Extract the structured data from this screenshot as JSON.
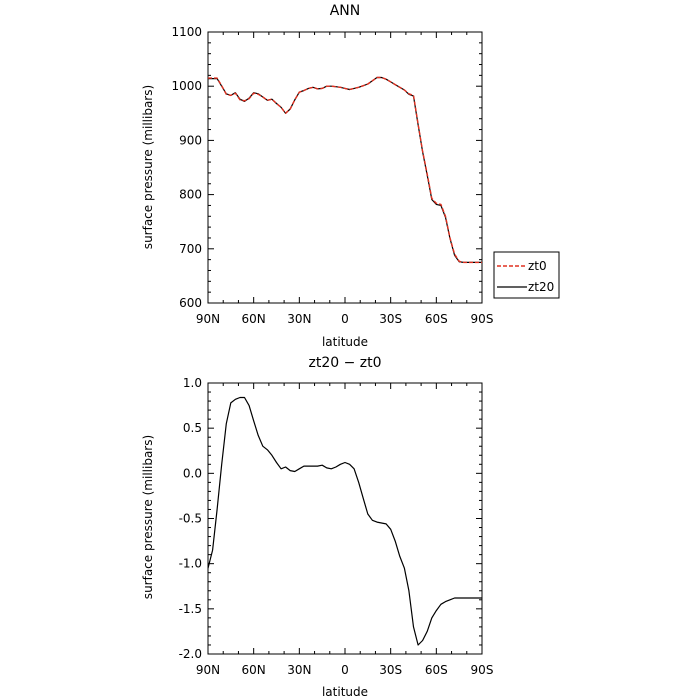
{
  "chart_data": [
    {
      "type": "line",
      "title": "ANN",
      "xlabel": "latitude",
      "ylabel": "surface pressure (millibars)",
      "xlim": [
        90,
        -90
      ],
      "ylim": [
        600,
        1100
      ],
      "xticks": [
        90,
        60,
        30,
        0,
        -30,
        -60,
        -90
      ],
      "xtick_labels": [
        "90N",
        "60N",
        "30N",
        "0",
        "30S",
        "60S",
        "90S"
      ],
      "yticks": [
        600,
        700,
        800,
        900,
        1000,
        1100
      ],
      "ytick_labels": [
        "600",
        "700",
        "800",
        "900",
        "1000",
        "1100"
      ],
      "grid": false,
      "legend_position": "right",
      "series": [
        {
          "name": "zt0",
          "color": "#e03020",
          "dash": "dashed",
          "x": [
            90,
            84,
            81,
            78,
            75,
            72,
            69,
            66,
            63,
            60,
            57,
            54,
            51,
            48,
            45,
            42,
            39,
            36,
            33,
            30,
            27,
            24,
            21,
            18,
            15,
            12,
            9,
            6,
            3,
            0,
            -3,
            -6,
            -9,
            -12,
            -15,
            -18,
            -21,
            -24,
            -27,
            -30,
            -33,
            -36,
            -39,
            -42,
            -45,
            -48,
            -51,
            -54,
            -57,
            -60,
            -63,
            -66,
            -69,
            -72,
            -75,
            -78,
            -81,
            -84,
            -87,
            -90
          ],
          "y": [
            1015,
            1015,
            1001,
            985,
            983,
            987,
            975,
            973,
            977,
            987,
            985,
            980,
            974,
            976,
            968,
            961,
            950,
            958,
            975,
            989,
            992,
            996,
            998,
            995,
            996,
            1000,
            1000,
            999,
            998,
            996,
            994,
            996,
            998,
            1001,
            1004,
            1010,
            1016,
            1016,
            1013,
            1008,
            1003,
            998,
            993,
            986,
            983,
            930,
            880,
            838,
            793,
            784,
            782,
            760,
            720,
            690,
            677,
            675,
            675,
            675,
            675,
            675
          ]
        },
        {
          "name": "zt20",
          "color": "#000000",
          "dash": "solid",
          "x": [
            90,
            84,
            81,
            78,
            75,
            72,
            69,
            66,
            63,
            60,
            57,
            54,
            51,
            48,
            45,
            42,
            39,
            36,
            33,
            30,
            27,
            24,
            21,
            18,
            15,
            12,
            9,
            6,
            3,
            0,
            -3,
            -6,
            -9,
            -12,
            -15,
            -18,
            -21,
            -24,
            -27,
            -30,
            -33,
            -36,
            -39,
            -42,
            -45,
            -48,
            -51,
            -54,
            -57,
            -60,
            -63,
            -66,
            -69,
            -72,
            -75,
            -78,
            -81,
            -84,
            -87,
            -90
          ],
          "y": [
            1014,
            1014,
            1000,
            986,
            983,
            988,
            976,
            972,
            978,
            988,
            986,
            980,
            974,
            976,
            968,
            961,
            950,
            958,
            975,
            989,
            992,
            996,
            998,
            995,
            996,
            1000,
            1000,
            999,
            998,
            996,
            994,
            996,
            998,
            1001,
            1004,
            1010,
            1016,
            1016,
            1013,
            1008,
            1003,
            998,
            993,
            985,
            982,
            929,
            879,
            836,
            791,
            782,
            780,
            758,
            719,
            688,
            676,
            675,
            675,
            675,
            675,
            675
          ]
        }
      ]
    },
    {
      "type": "line",
      "title": "zt20 − zt0",
      "xlabel": "latitude",
      "ylabel": "surface pressure (millibars)",
      "xlim": [
        90,
        -90
      ],
      "ylim": [
        -2.0,
        1.0
      ],
      "xticks": [
        90,
        60,
        30,
        0,
        -30,
        -60,
        -90
      ],
      "xtick_labels": [
        "90N",
        "60N",
        "30N",
        "0",
        "30S",
        "60S",
        "90S"
      ],
      "yticks": [
        -2.0,
        -1.5,
        -1.0,
        -0.5,
        0.0,
        0.5,
        1.0
      ],
      "ytick_labels": [
        "-2.0",
        "-1.5",
        "-1.0",
        "-0.5",
        "0.0",
        "0.5",
        "1.0"
      ],
      "grid": false,
      "series": [
        {
          "color": "#000000",
          "dash": "solid",
          "x": [
            90,
            87,
            84,
            81,
            78,
            75,
            72,
            69,
            66,
            63,
            60,
            57,
            54,
            51,
            48,
            45,
            42,
            39,
            36,
            33,
            30,
            27,
            24,
            21,
            18,
            15,
            12,
            9,
            6,
            3,
            0,
            -3,
            -6,
            -9,
            -12,
            -15,
            -18,
            -21,
            -24,
            -27,
            -30,
            -33,
            -36,
            -39,
            -42,
            -45,
            -48,
            -51,
            -54,
            -57,
            -60,
            -63,
            -66,
            -69,
            -72,
            -75,
            -78,
            -81,
            -84,
            -87,
            -90
          ],
          "y": [
            -1.05,
            -0.85,
            -0.4,
            0.1,
            0.55,
            0.78,
            0.82,
            0.84,
            0.84,
            0.75,
            0.58,
            0.42,
            0.3,
            0.26,
            0.2,
            0.12,
            0.05,
            0.07,
            0.03,
            0.02,
            0.05,
            0.08,
            0.08,
            0.08,
            0.08,
            0.09,
            0.06,
            0.05,
            0.07,
            0.1,
            0.12,
            0.1,
            0.05,
            -0.1,
            -0.28,
            -0.45,
            -0.52,
            -0.54,
            -0.55,
            -0.56,
            -0.62,
            -0.75,
            -0.92,
            -1.05,
            -1.3,
            -1.7,
            -1.9,
            -1.85,
            -1.75,
            -1.6,
            -1.52,
            -1.45,
            -1.42,
            -1.4,
            -1.38,
            -1.38,
            -1.38,
            -1.38,
            -1.38,
            -1.38,
            -1.38
          ]
        }
      ]
    }
  ]
}
